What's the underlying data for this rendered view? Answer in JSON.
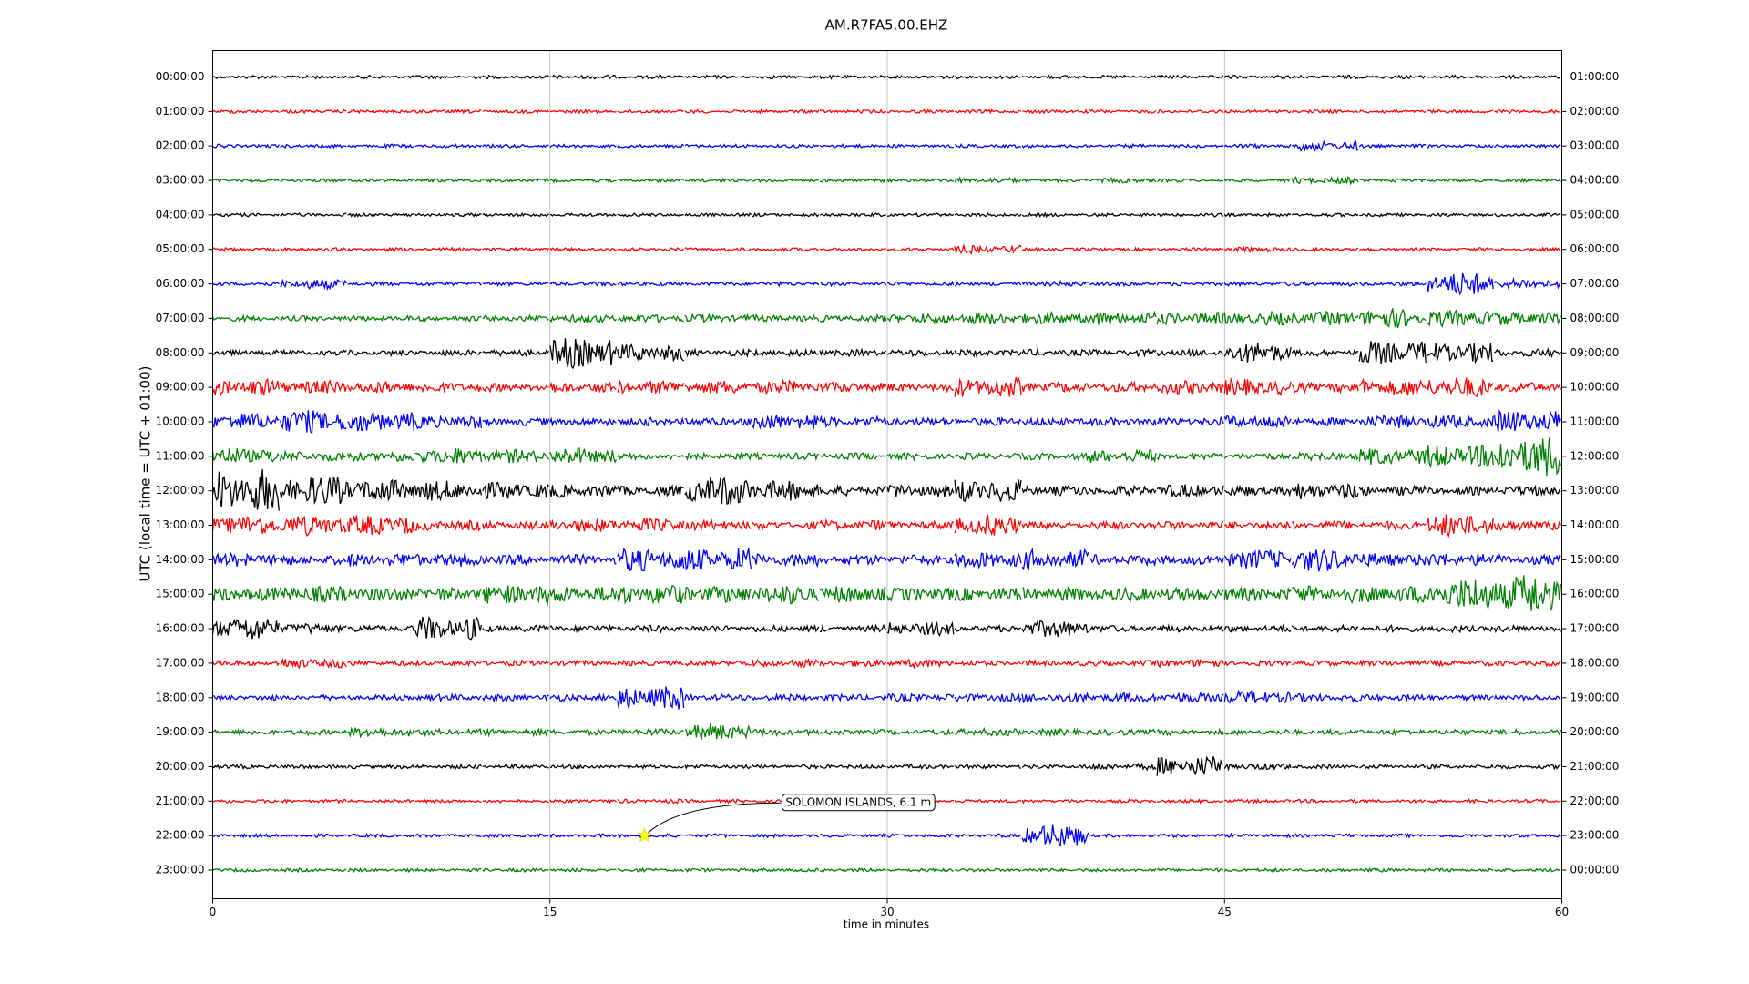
{
  "chart_data": {
    "type": "helicorder",
    "title": "AM.R7FA5.00.EHZ",
    "xlabel": "time in minutes",
    "ylabel": "UTC (local time = UTC + 01:00)",
    "xlim": [
      0,
      60
    ],
    "xticks": [
      0,
      15,
      30,
      45,
      60
    ],
    "grid": true,
    "bin_minutes": 3,
    "series": [
      {
        "name": "00:00:00",
        "right_label": "01:00:00",
        "color": "#000000",
        "values": [
          0.05,
          0.05,
          0.05,
          0.05,
          0.05,
          0.06,
          0.05,
          0.05,
          0.05,
          0.05,
          0.05,
          0.05,
          0.05,
          0.05,
          0.05,
          0.05,
          0.05,
          0.05,
          0.05,
          0.05
        ]
      },
      {
        "name": "01:00:00",
        "right_label": "02:00:00",
        "color": "#ff0000",
        "values": [
          0.05,
          0.05,
          0.05,
          0.05,
          0.05,
          0.05,
          0.05,
          0.05,
          0.05,
          0.05,
          0.05,
          0.05,
          0.05,
          0.05,
          0.05,
          0.05,
          0.05,
          0.05,
          0.05,
          0.05
        ]
      },
      {
        "name": "02:00:00",
        "right_label": "03:00:00",
        "color": "#0000ff",
        "values": [
          0.05,
          0.05,
          0.05,
          0.05,
          0.05,
          0.05,
          0.05,
          0.05,
          0.05,
          0.05,
          0.05,
          0.05,
          0.05,
          0.05,
          0.05,
          0.06,
          0.15,
          0.05,
          0.05,
          0.05
        ]
      },
      {
        "name": "03:00:00",
        "right_label": "04:00:00",
        "color": "#008000",
        "values": [
          0.05,
          0.05,
          0.05,
          0.05,
          0.05,
          0.05,
          0.05,
          0.05,
          0.05,
          0.05,
          0.05,
          0.08,
          0.05,
          0.07,
          0.05,
          0.05,
          0.1,
          0.05,
          0.05,
          0.05
        ]
      },
      {
        "name": "04:00:00",
        "right_label": "05:00:00",
        "color": "#000000",
        "values": [
          0.05,
          0.05,
          0.05,
          0.05,
          0.05,
          0.05,
          0.05,
          0.05,
          0.05,
          0.05,
          0.05,
          0.05,
          0.05,
          0.05,
          0.05,
          0.05,
          0.05,
          0.05,
          0.05,
          0.05
        ]
      },
      {
        "name": "05:00:00",
        "right_label": "06:00:00",
        "color": "#ff0000",
        "values": [
          0.05,
          0.05,
          0.05,
          0.05,
          0.05,
          0.05,
          0.05,
          0.05,
          0.05,
          0.05,
          0.05,
          0.12,
          0.05,
          0.05,
          0.05,
          0.08,
          0.05,
          0.05,
          0.05,
          0.05
        ]
      },
      {
        "name": "06:00:00",
        "right_label": "07:00:00",
        "color": "#0000ff",
        "values": [
          0.06,
          0.15,
          0.06,
          0.06,
          0.06,
          0.06,
          0.06,
          0.06,
          0.06,
          0.06,
          0.06,
          0.06,
          0.08,
          0.06,
          0.06,
          0.06,
          0.06,
          0.06,
          0.35,
          0.15
        ]
      },
      {
        "name": "07:00:00",
        "right_label": "08:00:00",
        "color": "#008000",
        "values": [
          0.08,
          0.08,
          0.08,
          0.08,
          0.09,
          0.12,
          0.12,
          0.12,
          0.1,
          0.1,
          0.15,
          0.18,
          0.18,
          0.2,
          0.18,
          0.2,
          0.2,
          0.3,
          0.25,
          0.2
        ]
      },
      {
        "name": "08:00:00",
        "right_label": "09:00:00",
        "color": "#000000",
        "values": [
          0.08,
          0.08,
          0.08,
          0.09,
          0.1,
          0.45,
          0.25,
          0.1,
          0.1,
          0.1,
          0.1,
          0.1,
          0.1,
          0.1,
          0.1,
          0.3,
          0.1,
          0.35,
          0.3,
          0.12
        ]
      },
      {
        "name": "09:00:00",
        "right_label": "10:00:00",
        "color": "#ff0000",
        "values": [
          0.25,
          0.2,
          0.18,
          0.15,
          0.12,
          0.15,
          0.2,
          0.2,
          0.2,
          0.15,
          0.12,
          0.3,
          0.15,
          0.15,
          0.2,
          0.25,
          0.15,
          0.25,
          0.3,
          0.15
        ]
      },
      {
        "name": "10:00:00",
        "right_label": "11:00:00",
        "color": "#0000ff",
        "values": [
          0.25,
          0.35,
          0.3,
          0.2,
          0.12,
          0.12,
          0.12,
          0.12,
          0.25,
          0.15,
          0.12,
          0.12,
          0.12,
          0.12,
          0.12,
          0.2,
          0.12,
          0.2,
          0.2,
          0.35
        ]
      },
      {
        "name": "11:00:00",
        "right_label": "12:00:00",
        "color": "#008000",
        "values": [
          0.25,
          0.15,
          0.15,
          0.25,
          0.2,
          0.25,
          0.1,
          0.1,
          0.1,
          0.1,
          0.1,
          0.1,
          0.1,
          0.2,
          0.1,
          0.1,
          0.12,
          0.25,
          0.35,
          0.6
        ]
      },
      {
        "name": "12:00:00",
        "right_label": "13:00:00",
        "color": "#000000",
        "values": [
          0.65,
          0.45,
          0.35,
          0.3,
          0.25,
          0.2,
          0.15,
          0.45,
          0.3,
          0.15,
          0.2,
          0.35,
          0.15,
          0.15,
          0.2,
          0.15,
          0.25,
          0.15,
          0.12,
          0.15
        ]
      },
      {
        "name": "13:00:00",
        "right_label": "14:00:00",
        "color": "#ff0000",
        "values": [
          0.3,
          0.3,
          0.3,
          0.15,
          0.12,
          0.2,
          0.2,
          0.15,
          0.12,
          0.15,
          0.12,
          0.3,
          0.12,
          0.12,
          0.12,
          0.12,
          0.12,
          0.12,
          0.35,
          0.15
        ]
      },
      {
        "name": "14:00:00",
        "right_label": "15:00:00",
        "color": "#0000ff",
        "values": [
          0.2,
          0.15,
          0.2,
          0.2,
          0.15,
          0.15,
          0.35,
          0.35,
          0.2,
          0.15,
          0.15,
          0.25,
          0.3,
          0.15,
          0.15,
          0.3,
          0.35,
          0.2,
          0.2,
          0.15
        ]
      },
      {
        "name": "15:00:00",
        "right_label": "16:00:00",
        "color": "#008000",
        "values": [
          0.2,
          0.25,
          0.2,
          0.2,
          0.3,
          0.25,
          0.3,
          0.25,
          0.3,
          0.25,
          0.2,
          0.2,
          0.2,
          0.2,
          0.2,
          0.2,
          0.25,
          0.25,
          0.5,
          0.6
        ]
      },
      {
        "name": "16:00:00",
        "right_label": "17:00:00",
        "color": "#000000",
        "values": [
          0.35,
          0.15,
          0.1,
          0.35,
          0.1,
          0.1,
          0.1,
          0.1,
          0.1,
          0.1,
          0.2,
          0.1,
          0.25,
          0.1,
          0.1,
          0.1,
          0.1,
          0.1,
          0.1,
          0.1
        ]
      },
      {
        "name": "17:00:00",
        "right_label": "18:00:00",
        "color": "#ff0000",
        "values": [
          0.08,
          0.15,
          0.08,
          0.08,
          0.08,
          0.08,
          0.08,
          0.08,
          0.12,
          0.1,
          0.12,
          0.08,
          0.08,
          0.08,
          0.12,
          0.08,
          0.08,
          0.08,
          0.08,
          0.08
        ]
      },
      {
        "name": "18:00:00",
        "right_label": "19:00:00",
        "color": "#0000ff",
        "values": [
          0.08,
          0.08,
          0.08,
          0.1,
          0.1,
          0.1,
          0.35,
          0.1,
          0.1,
          0.1,
          0.12,
          0.12,
          0.15,
          0.15,
          0.15,
          0.2,
          0.12,
          0.1,
          0.08,
          0.08
        ]
      },
      {
        "name": "19:00:00",
        "right_label": "20:00:00",
        "color": "#008000",
        "values": [
          0.08,
          0.08,
          0.15,
          0.1,
          0.1,
          0.08,
          0.1,
          0.25,
          0.1,
          0.08,
          0.08,
          0.12,
          0.1,
          0.1,
          0.08,
          0.08,
          0.08,
          0.08,
          0.08,
          0.08
        ]
      },
      {
        "name": "20:00:00",
        "right_label": "21:00:00",
        "color": "#000000",
        "values": [
          0.06,
          0.06,
          0.06,
          0.06,
          0.06,
          0.06,
          0.06,
          0.06,
          0.06,
          0.06,
          0.06,
          0.06,
          0.06,
          0.1,
          0.3,
          0.1,
          0.06,
          0.06,
          0.06,
          0.06
        ]
      },
      {
        "name": "21:00:00",
        "right_label": "22:00:00",
        "color": "#ff0000",
        "values": [
          0.05,
          0.05,
          0.05,
          0.05,
          0.05,
          0.05,
          0.06,
          0.05,
          0.05,
          0.05,
          0.05,
          0.05,
          0.05,
          0.05,
          0.05,
          0.05,
          0.05,
          0.05,
          0.05,
          0.05
        ]
      },
      {
        "name": "22:00:00",
        "right_label": "23:00:00",
        "color": "#0000ff",
        "values": [
          0.05,
          0.05,
          0.05,
          0.05,
          0.05,
          0.05,
          0.06,
          0.05,
          0.05,
          0.05,
          0.05,
          0.05,
          0.35,
          0.05,
          0.05,
          0.05,
          0.05,
          0.05,
          0.05,
          0.05
        ],
        "event": {
          "label": "SOLOMON ISLANDS, 6.1 m",
          "x": 19.2
        }
      },
      {
        "name": "23:00:00",
        "right_label": "00:00:00",
        "color": "#008000",
        "values": [
          0.05,
          0.05,
          0.05,
          0.05,
          0.05,
          0.05,
          0.05,
          0.05,
          0.05,
          0.05,
          0.05,
          0.05,
          0.05,
          0.05,
          0.05,
          0.05,
          0.05,
          0.05,
          0.05,
          0.05
        ]
      }
    ]
  }
}
